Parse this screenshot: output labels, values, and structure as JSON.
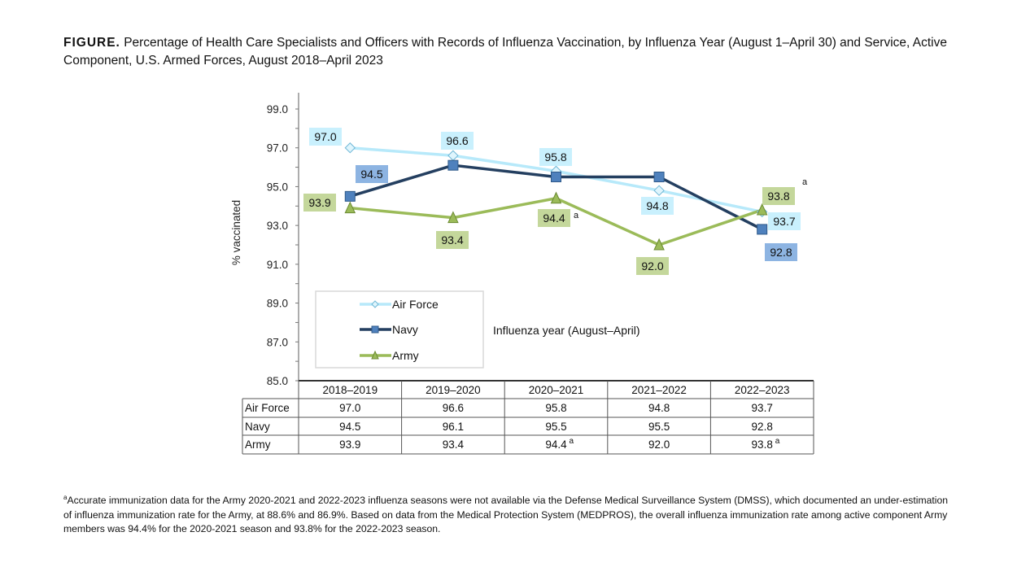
{
  "title": {
    "prefix": "FIGURE.",
    "text": "Percentage of Health Care Specialists and Officers with Records of Influenza Vaccination, by Influenza Year (August 1–April 30) and Service, Active Component, U.S. Armed Forces, August 2018–April 2023"
  },
  "chart_data": {
    "type": "line",
    "ylabel": "% vaccinated",
    "xlabel": "Influenza year (August–April)",
    "ylim": [
      85.0,
      99.0
    ],
    "yticks": [
      "85.0",
      "87.0",
      "89.0",
      "91.0",
      "93.0",
      "95.0",
      "97.0",
      "99.0"
    ],
    "categories": [
      "2018–2019",
      "2019–2020",
      "2020–2021",
      "2021–2022",
      "2022–2023"
    ],
    "legend_position": "lower-left",
    "series": [
      {
        "name": "Air Force",
        "values": [
          97.0,
          96.6,
          95.8,
          94.8,
          93.7
        ],
        "labels": [
          "97.0",
          "96.6",
          "95.8",
          "94.8",
          "93.7"
        ],
        "color": "#b7e9fa",
        "label_bg": "#c9f0fd",
        "marker": "diamond",
        "notes": [
          "",
          "",
          "",
          "",
          ""
        ]
      },
      {
        "name": "Navy",
        "values": [
          94.5,
          96.1,
          95.5,
          95.5,
          92.8
        ],
        "labels": [
          "94.5",
          "96.1",
          "95.5",
          "95.5",
          "92.8"
        ],
        "color": "#243f60",
        "label_bg": "#8db4e2",
        "marker": "square",
        "marker_color": "#4f81bd",
        "notes": [
          "",
          "",
          "",
          "",
          ""
        ]
      },
      {
        "name": "Army",
        "values": [
          93.9,
          93.4,
          94.4,
          92.0,
          93.8
        ],
        "labels": [
          "93.9",
          "93.4",
          "94.4",
          "92.0",
          "93.8"
        ],
        "color": "#9bbb59",
        "label_bg": "#c4d79b",
        "marker": "triangle",
        "notes": [
          "",
          "",
          "a",
          "",
          "a"
        ]
      }
    ]
  },
  "footnote": {
    "mark": "a",
    "text": "Accurate immunization data for the Army 2020-2021 and 2022-2023 influenza seasons were not available via the Defense Medical Surveillance System (DMSS), which documented an under-estimation of influenza immunization rate for the Army, at 88.6% and 86.9%. Based on data from the Medical Protection System (MEDPROS), the overall influenza immunization rate among active component Army members was 94.4% for the 2020-2021 season and 93.8% for the 2022-2023 season."
  }
}
